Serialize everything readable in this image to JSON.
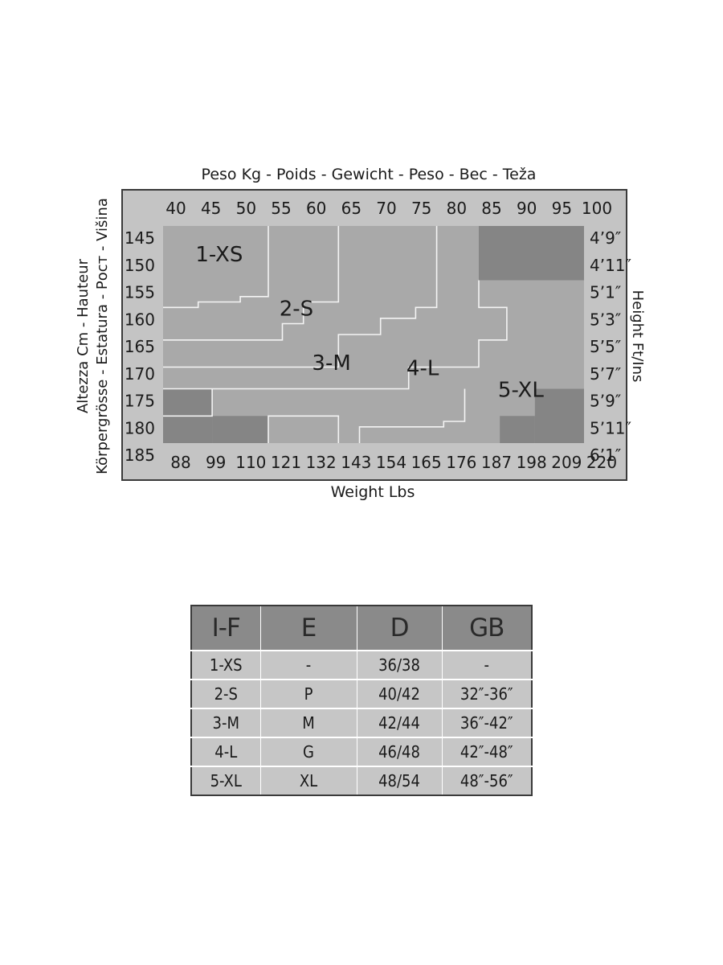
{
  "chart_data": {
    "type": "heatmap",
    "title": "Peso Kg - Poids - Gewicht - Peso - Bec - Teža",
    "xlabel": "Weight Lbs",
    "ylabel_lines": [
      "Altezza Cm - Hauteur",
      "Körpergrösse - Estatura - Рост - Višina"
    ],
    "ylabel_right": "Height Ft/Ins",
    "kg_ticks": [
      "40",
      "45",
      "50",
      "55",
      "60",
      "65",
      "70",
      "75",
      "80",
      "85",
      "90",
      "95",
      "100"
    ],
    "lbs_ticks": [
      "88",
      "99",
      "110",
      "121",
      "132",
      "143",
      "154",
      "165",
      "176",
      "187",
      "198",
      "209",
      "220"
    ],
    "cm_ticks": [
      "145",
      "150",
      "155",
      "160",
      "165",
      "170",
      "175",
      "180",
      "185"
    ],
    "ft_ticks": [
      "4’9″",
      "4’11″",
      "5’1″",
      "5’3″",
      "5’5″",
      "5’7″",
      "5’9″",
      "5’11″",
      "6’1″"
    ],
    "kg_range": [
      40,
      100
    ],
    "cm_range": [
      145,
      185
    ],
    "size_labels": [
      {
        "label": "1-XS",
        "kg": 48,
        "cm": 150
      },
      {
        "label": "2-S",
        "kg": 59,
        "cm": 160
      },
      {
        "label": "3-M",
        "kg": 64,
        "cm": 170
      },
      {
        "label": "4-L",
        "kg": 77,
        "cm": 171
      },
      {
        "label": "5-XL",
        "kg": 91,
        "cm": 175
      }
    ],
    "unavailable_zones": [
      {
        "kg": [
          85,
          100
        ],
        "cm": [
          145,
          155
        ],
        "color": "#858585"
      },
      {
        "kg": [
          40,
          47
        ],
        "cm": [
          175,
          185
        ],
        "color": "#858585"
      },
      {
        "kg": [
          47,
          55
        ],
        "cm": [
          180,
          185
        ],
        "color": "#858585"
      },
      {
        "kg": [
          93,
          100
        ],
        "cm": [
          175,
          185
        ],
        "color": "#858585"
      },
      {
        "kg": [
          88,
          93
        ],
        "cm": [
          180,
          185
        ],
        "color": "#858585"
      }
    ],
    "boundaries": [
      {
        "name": "xs-s",
        "points": [
          [
            40,
            160
          ],
          [
            45,
            160
          ],
          [
            45,
            159
          ],
          [
            51,
            159
          ],
          [
            51,
            158
          ],
          [
            55,
            158
          ],
          [
            55,
            145
          ]
        ]
      },
      {
        "name": "s-m",
        "points": [
          [
            40,
            166
          ],
          [
            57,
            166
          ],
          [
            57,
            163
          ],
          [
            60,
            163
          ],
          [
            60,
            159
          ],
          [
            65,
            159
          ],
          [
            65,
            145
          ]
        ]
      },
      {
        "name": "m-l",
        "points": [
          [
            40,
            171
          ],
          [
            65,
            171
          ],
          [
            65,
            165
          ],
          [
            71,
            165
          ],
          [
            71,
            162
          ],
          [
            76,
            162
          ],
          [
            76,
            160
          ],
          [
            79,
            160
          ],
          [
            79,
            145
          ]
        ]
      },
      {
        "name": "l-xl-top",
        "points": [
          [
            85,
            155
          ],
          [
            85,
            160
          ],
          [
            89,
            160
          ],
          [
            89,
            166
          ],
          [
            85,
            166
          ],
          [
            85,
            171
          ],
          [
            75,
            171
          ],
          [
            75,
            175
          ],
          [
            40,
            175
          ]
        ]
      },
      {
        "name": "l-xl-bottom",
        "points": [
          [
            55,
            185
          ],
          [
            55,
            180
          ],
          [
            65,
            180
          ],
          [
            65,
            185
          ]
        ]
      },
      {
        "name": "xl-lower",
        "points": [
          [
            68,
            185
          ],
          [
            68,
            182
          ],
          [
            80,
            182
          ],
          [
            80,
            181
          ],
          [
            83,
            181
          ],
          [
            83,
            175
          ]
        ]
      },
      {
        "name": "lower-bottom",
        "points": [
          [
            47,
            175
          ],
          [
            47,
            180
          ],
          [
            40,
            180
          ]
        ]
      }
    ]
  },
  "size_table": {
    "headers": [
      "I-F",
      "E",
      "D",
      "GB"
    ],
    "rows": [
      [
        "1-XS",
        "-",
        "36/38",
        "-"
      ],
      [
        "2-S",
        "P",
        "40/42",
        "32″-36″"
      ],
      [
        "3-M",
        "M",
        "42/44",
        "36″-42″"
      ],
      [
        "4-L",
        "G",
        "46/48",
        "42″-48″"
      ],
      [
        "5-XL",
        "XL",
        "48/54",
        "48″-56″"
      ]
    ]
  },
  "colors": {
    "frame": "#3a3a3a",
    "frame_fill": "#c4c4c4",
    "plot_fill": "#a9a9a9",
    "unavailable": "#858585",
    "header_fill": "#8a8a8a",
    "cell_fill": "#c6c6c6"
  }
}
